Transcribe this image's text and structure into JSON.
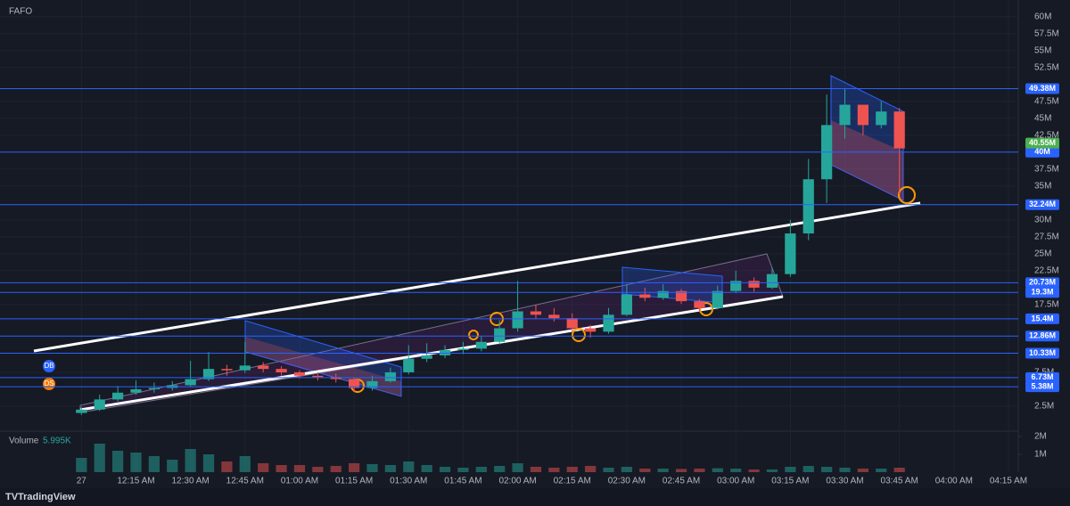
{
  "chart_data": {
    "type": "candlestick",
    "symbol": "FAFO",
    "x": [
      0,
      5,
      10,
      15,
      20,
      25,
      30,
      35,
      40,
      45,
      50,
      55,
      60,
      65,
      70,
      75,
      80,
      85,
      90,
      95,
      100,
      105,
      110,
      115,
      120,
      125,
      130,
      135,
      140,
      145,
      150,
      155,
      160,
      165,
      170,
      175,
      180,
      185,
      190,
      195,
      200,
      205,
      210,
      215,
      220,
      225
    ],
    "open": [
      1.5,
      2.0,
      3.5,
      4.5,
      5.0,
      5.2,
      5.6,
      6.5,
      8.0,
      7.8,
      8.5,
      8.0,
      7.5,
      7.0,
      6.8,
      6.5,
      5.2,
      6.2,
      7.5,
      9.5,
      10.0,
      10.8,
      11.0,
      12.0,
      14.0,
      16.5,
      16.0,
      15.5,
      14.0,
      13.5,
      16.0,
      19.0,
      18.5,
      19.5,
      18.0,
      17.0,
      19.5,
      21.0,
      20.0,
      22.0,
      28.0,
      36.0,
      44.0,
      47.0,
      44.0,
      46.0
    ],
    "high": [
      2.4,
      4.2,
      5.5,
      6.3,
      6.0,
      6.2,
      9.2,
      10.5,
      8.6,
      12.0,
      9.0,
      8.4,
      7.8,
      7.5,
      7.3,
      6.8,
      7.0,
      8.2,
      11.5,
      11.8,
      11.5,
      12.0,
      12.8,
      15.2,
      21.0,
      17.5,
      17.0,
      16.2,
      14.5,
      17.0,
      20.5,
      20.0,
      20.5,
      19.8,
      18.3,
      20.3,
      22.5,
      21.5,
      23.0,
      30.0,
      39.0,
      48.5,
      49.4,
      47.0,
      47.5,
      46.5
    ],
    "low": [
      1.2,
      1.8,
      3.2,
      4.2,
      4.5,
      4.8,
      5.4,
      6.2,
      7.0,
      7.4,
      7.5,
      7.0,
      6.6,
      6.3,
      6.0,
      4.6,
      4.8,
      6.0,
      7.2,
      9.0,
      9.6,
      10.2,
      10.6,
      11.6,
      13.5,
      15.4,
      15.0,
      13.5,
      12.6,
      13.2,
      15.8,
      18.0,
      18.2,
      17.6,
      16.4,
      16.8,
      19.2,
      19.4,
      19.8,
      21.6,
      27.0,
      32.5,
      42.0,
      42.5,
      43.5,
      33.8
    ],
    "close": [
      2.0,
      3.5,
      4.5,
      5.0,
      5.2,
      5.6,
      6.5,
      8.0,
      7.8,
      8.5,
      8.0,
      7.5,
      7.0,
      6.8,
      6.5,
      5.2,
      6.2,
      7.5,
      9.5,
      10.0,
      10.8,
      11.0,
      12.0,
      14.0,
      16.5,
      16.0,
      15.5,
      14.0,
      13.5,
      16.0,
      19.0,
      18.5,
      19.5,
      18.0,
      17.0,
      19.5,
      21.0,
      20.0,
      22.0,
      28.0,
      36.0,
      44.0,
      47.0,
      44.0,
      46.0,
      40.55
    ],
    "volume": [
      0.8,
      1.6,
      1.2,
      1.1,
      0.9,
      0.7,
      1.3,
      1.0,
      0.6,
      0.9,
      0.5,
      0.4,
      0.4,
      0.3,
      0.35,
      0.5,
      0.45,
      0.4,
      0.6,
      0.4,
      0.3,
      0.25,
      0.3,
      0.35,
      0.5,
      0.3,
      0.25,
      0.3,
      0.35,
      0.25,
      0.3,
      0.2,
      0.2,
      0.18,
      0.2,
      0.22,
      0.2,
      0.15,
      0.15,
      0.3,
      0.35,
      0.3,
      0.25,
      0.2,
      0.2,
      0.25
    ],
    "up_color": "#26a69a",
    "down_color": "#ef5350",
    "level_color": "#2962ff",
    "last_color": "#4caf50",
    "grid": true,
    "xlim": [
      -22.4,
      257.7
    ],
    "ylim": [
      0,
      61.8
    ],
    "xticks": [
      {
        "value": 0,
        "label": "27"
      },
      {
        "value": 15,
        "label": "12:15 AM"
      },
      {
        "value": 30,
        "label": "12:30 AM"
      },
      {
        "value": 45,
        "label": "12:45 AM"
      },
      {
        "value": 60,
        "label": "01:00 AM"
      },
      {
        "value": 75,
        "label": "01:15 AM"
      },
      {
        "value": 90,
        "label": "01:30 AM"
      },
      {
        "value": 105,
        "label": "01:45 AM"
      },
      {
        "value": 120,
        "label": "02:00 AM"
      },
      {
        "value": 135,
        "label": "02:15 AM"
      },
      {
        "value": 150,
        "label": "02:30 AM"
      },
      {
        "value": 165,
        "label": "02:45 AM"
      },
      {
        "value": 180,
        "label": "03:00 AM"
      },
      {
        "value": 195,
        "label": "03:15 AM"
      },
      {
        "value": 210,
        "label": "03:30 AM"
      },
      {
        "value": 225,
        "label": "03:45 AM"
      },
      {
        "value": 240,
        "label": "04:00 AM"
      },
      {
        "value": 255,
        "label": "04:15 AM"
      }
    ],
    "yticks": [
      {
        "value": 60,
        "label": "60M"
      },
      {
        "value": 57.5,
        "label": "57.5M"
      },
      {
        "value": 55,
        "label": "55M"
      },
      {
        "value": 52.5,
        "label": "52.5M"
      },
      {
        "value": 47.5,
        "label": "47.5M"
      },
      {
        "value": 45,
        "label": "45M"
      },
      {
        "value": 42.5,
        "label": "42.5M"
      },
      {
        "value": 37.5,
        "label": "37.5M"
      },
      {
        "value": 35,
        "label": "35M"
      },
      {
        "value": 30,
        "label": "30M"
      },
      {
        "value": 27.5,
        "label": "27.5M"
      },
      {
        "value": 25,
        "label": "25M"
      },
      {
        "value": 22.5,
        "label": "22.5M"
      },
      {
        "value": 17.5,
        "label": "17.5M"
      },
      {
        "value": 7.5,
        "label": "7.5M"
      },
      {
        "value": 2.5,
        "label": "2.5M"
      }
    ],
    "levels": [
      {
        "value": 49.38,
        "label": "49.38M"
      },
      {
        "value": 40,
        "label": "40M"
      },
      {
        "value": 32.24,
        "label": "32.24M"
      },
      {
        "value": 20.73,
        "label": "20.73M"
      },
      {
        "value": 19.3,
        "label": "19.3M"
      },
      {
        "value": 15.4,
        "label": "15.4M"
      },
      {
        "value": 12.86,
        "label": "12.86M"
      },
      {
        "value": 10.33,
        "label": "10.33M"
      },
      {
        "value": 6.73,
        "label": "6.73M"
      },
      {
        "value": 5.38,
        "label": "5.38M"
      }
    ],
    "last_price": {
      "value": 40.55,
      "label": "40.55M"
    },
    "volume_label": "Volume",
    "volume_value": "5.995K",
    "volume_ticks": [
      {
        "value": 2,
        "label": "2M"
      },
      {
        "value": 1,
        "label": "1M"
      }
    ],
    "markers": [
      "DB",
      "DS"
    ],
    "brand": "TradingView"
  }
}
